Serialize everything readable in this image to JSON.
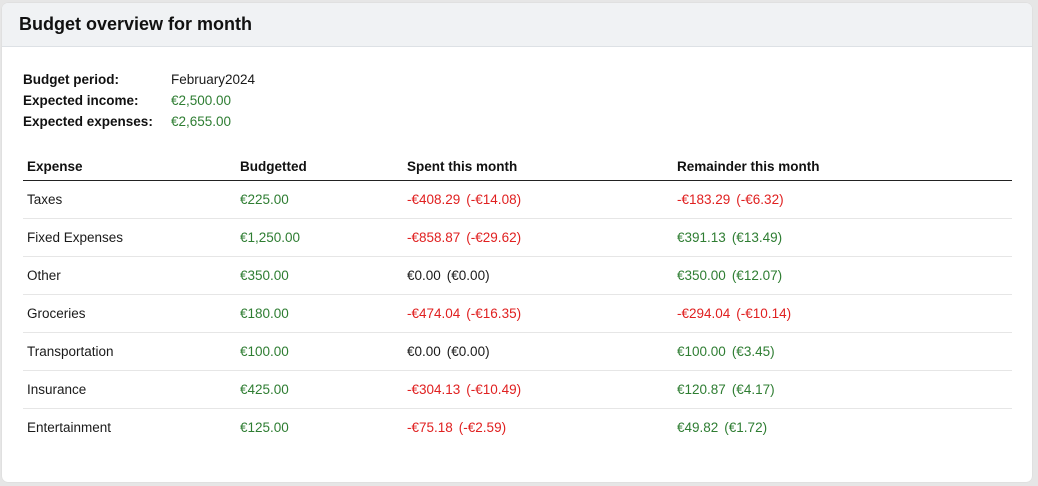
{
  "title": "Budget overview for month",
  "summary": {
    "period_label": "Budget period:",
    "period_value": "February2024",
    "income_label": "Expected income:",
    "income_value": "€2,500.00",
    "expenses_label": "Expected expenses:",
    "expenses_value": "€2,655.00"
  },
  "columns": {
    "expense": "Expense",
    "budgetted": "Budgetted",
    "spent": "Spent this month",
    "remainder": "Remainder this month"
  },
  "rows": [
    {
      "name": "Taxes",
      "budget": "€225.00",
      "spent": "-€408.29",
      "spent_daily": "(-€14.08)",
      "remainder": "-€183.29",
      "remainder_daily": "(-€6.32)"
    },
    {
      "name": "Fixed Expenses",
      "budget": "€1,250.00",
      "spent": "-€858.87",
      "spent_daily": "(-€29.62)",
      "remainder": "€391.13",
      "remainder_daily": "(€13.49)"
    },
    {
      "name": "Other",
      "budget": "€350.00",
      "spent": "€0.00",
      "spent_daily": "(€0.00)",
      "remainder": "€350.00",
      "remainder_daily": "(€12.07)"
    },
    {
      "name": "Groceries",
      "budget": "€180.00",
      "spent": "-€474.04",
      "spent_daily": "(-€16.35)",
      "remainder": "-€294.04",
      "remainder_daily": "(-€10.14)"
    },
    {
      "name": "Transportation",
      "budget": "€100.00",
      "spent": "€0.00",
      "spent_daily": "(€0.00)",
      "remainder": "€100.00",
      "remainder_daily": "(€3.45)"
    },
    {
      "name": "Insurance",
      "budget": "€425.00",
      "spent": "-€304.13",
      "spent_daily": "(-€10.49)",
      "remainder": "€120.87",
      "remainder_daily": "(€4.17)"
    },
    {
      "name": "Entertainment",
      "budget": "€125.00",
      "spent": "-€75.18",
      "spent_daily": "(-€2.59)",
      "remainder": "€49.82",
      "remainder_daily": "(€1.72)"
    }
  ],
  "colors": {
    "positive": "#2e7d32",
    "negative": "#e02020",
    "header_bg": "#f0f2f4"
  }
}
